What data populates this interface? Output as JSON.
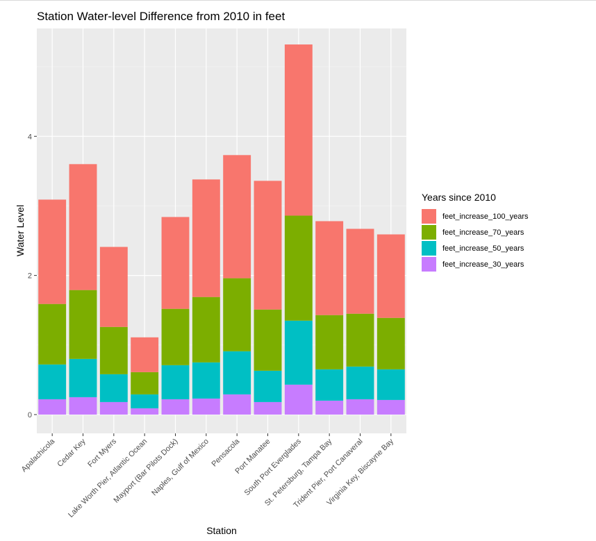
{
  "chart_data": {
    "type": "bar",
    "stacked": true,
    "title": "Station Water-level Difference from 2010 in feet",
    "xlabel": "Station",
    "ylabel": "Water Level",
    "ylim": [
      -0.27,
      5.55
    ],
    "yticks": [
      0,
      2,
      4
    ],
    "grid": true,
    "legend_position": "right",
    "legend_title": "Years since 2010",
    "categories": [
      "Apalachicola",
      "Cedar Key",
      "Fort Myers",
      "Lake Worth Pier, Atlantic Ocean",
      "Mayport (Bar Pilots Dock)",
      "Naples, Gulf of Mexico",
      "Pensacola",
      "Port Manatee",
      "South Port Everglades",
      "St. Petersburg, Tampa Bay",
      "Trident Pier, Port Canaveral",
      "Virginia Key, Biscayne Bay"
    ],
    "series": [
      {
        "name": "feet_increase_100_years",
        "color": "#F8766D",
        "values": [
          1.5,
          1.81,
          1.15,
          0.5,
          1.32,
          1.69,
          1.77,
          1.85,
          2.46,
          1.35,
          1.22,
          1.2
        ]
      },
      {
        "name": "feet_increase_70_years",
        "color": "#7CAE00",
        "values": [
          0.87,
          0.99,
          0.68,
          0.32,
          0.81,
          0.94,
          1.05,
          0.88,
          1.51,
          0.78,
          0.76,
          0.74
        ]
      },
      {
        "name": "feet_increase_50_years",
        "color": "#00BFC4",
        "values": [
          0.5,
          0.55,
          0.4,
          0.2,
          0.49,
          0.52,
          0.62,
          0.45,
          0.92,
          0.45,
          0.47,
          0.44
        ]
      },
      {
        "name": "feet_increase_30_years",
        "color": "#C77CFF",
        "values": [
          0.22,
          0.25,
          0.18,
          0.09,
          0.22,
          0.23,
          0.29,
          0.18,
          0.43,
          0.2,
          0.22,
          0.21
        ]
      }
    ]
  }
}
